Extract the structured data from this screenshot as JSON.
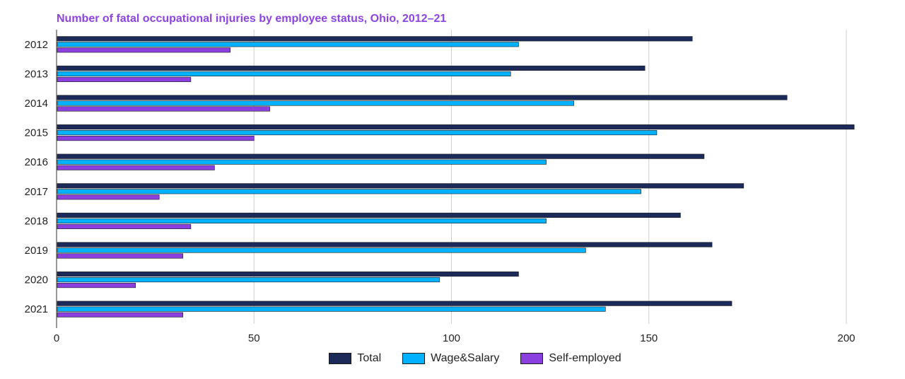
{
  "chart_data": {
    "type": "bar",
    "orientation": "horizontal",
    "title": "Number of fatal occupational injuries by employee status, Ohio, 2012–21",
    "categories": [
      "2012",
      "2013",
      "2014",
      "2015",
      "2016",
      "2017",
      "2018",
      "2019",
      "2020",
      "2021"
    ],
    "series": [
      {
        "name": "Total",
        "color": "#1b2a59",
        "values": [
          161,
          149,
          185,
          202,
          164,
          174,
          158,
          166,
          117,
          171
        ]
      },
      {
        "name": "Wage&Salary",
        "color": "#00b2ff",
        "values": [
          117,
          115,
          131,
          152,
          124,
          148,
          124,
          134,
          97,
          139
        ]
      },
      {
        "name": "Self-employed",
        "color": "#8a3fde",
        "values": [
          44,
          34,
          54,
          50,
          40,
          26,
          34,
          32,
          20,
          32
        ]
      }
    ],
    "xlim": [
      0,
      210
    ],
    "xticks": [
      "0",
      "50",
      "100",
      "150",
      "200"
    ],
    "grid": true,
    "legend_position": "bottom"
  }
}
